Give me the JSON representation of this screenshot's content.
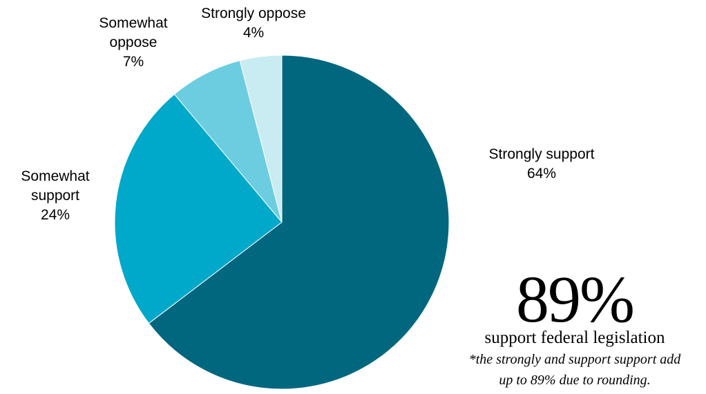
{
  "chart_data": {
    "type": "pie",
    "slices": [
      {
        "name": "Strongly support",
        "value": 64,
        "label_pct": "64%",
        "color": "#00677f"
      },
      {
        "name": "Somewhat support",
        "value": 24,
        "label_pct": "24%",
        "color": "#00a8c9"
      },
      {
        "name": "Somewhat oppose",
        "value": 7,
        "label_pct": "7%",
        "color": "#6ccde0"
      },
      {
        "name": "Strongly oppose",
        "value": 4,
        "label_pct": "4%",
        "color": "#c9ecf3"
      }
    ],
    "labels": {
      "strongly_support": [
        "Strongly support",
        "64%"
      ],
      "somewhat_support": [
        "Somewhat",
        "support",
        "24%"
      ],
      "somewhat_oppose": [
        "Somewhat",
        "oppose",
        "7%"
      ],
      "strongly_oppose": [
        "Strongly oppose",
        "4%"
      ]
    }
  },
  "stat": {
    "value": "89%",
    "caption": "support federal legislation",
    "footnote_line1": "*the strongly and support support add",
    "footnote_line2": "up to 89% due to rounding."
  }
}
